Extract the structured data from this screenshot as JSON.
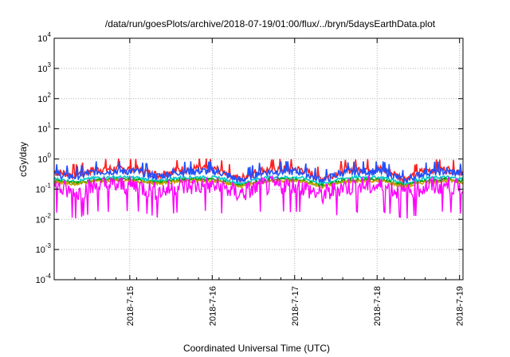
{
  "chart_data": {
    "type": "line",
    "title": "/data/run/goesPlots/archive/2018-07-19/01:00/flux/../bryn/5daysEarthData.plot",
    "xlabel": "Coordinated Universal Time (UTC)",
    "ylabel": "cGy/day",
    "xlim": [
      "2018-07-14T02:00",
      "2018-07-19T01:00"
    ],
    "ylim": [
      0.0001,
      10000
    ],
    "yscale": "log",
    "grid": true,
    "legend": "none",
    "x_ticks": [
      "2018-7-15",
      "2018-7-16",
      "2018-7-17",
      "2018-7-18",
      "2018-7-19"
    ],
    "y_ticks": [
      {
        "value": 0.0001,
        "base": "10",
        "exp": "-4"
      },
      {
        "value": 0.001,
        "base": "10",
        "exp": "-3"
      },
      {
        "value": 0.01,
        "base": "10",
        "exp": "-2"
      },
      {
        "value": 0.1,
        "base": "10",
        "exp": "-1"
      },
      {
        "value": 1,
        "base": "10",
        "exp": "0"
      },
      {
        "value": 10,
        "base": "10",
        "exp": "1"
      },
      {
        "value": 100,
        "base": "10",
        "exp": "2"
      },
      {
        "value": 1000,
        "base": "10",
        "exp": "3"
      },
      {
        "value": 10000,
        "base": "10",
        "exp": "4"
      }
    ],
    "x": [
      "2018-07-14T02:00",
      "2018-07-14T08:00",
      "2018-07-14T14:00",
      "2018-07-14T20:00",
      "2018-07-15T02:00",
      "2018-07-15T08:00",
      "2018-07-15T14:00",
      "2018-07-15T20:00",
      "2018-07-16T02:00",
      "2018-07-16T08:00",
      "2018-07-16T14:00",
      "2018-07-16T20:00",
      "2018-07-17T02:00",
      "2018-07-17T08:00",
      "2018-07-17T14:00",
      "2018-07-17T20:00",
      "2018-07-18T02:00",
      "2018-07-18T08:00",
      "2018-07-18T14:00",
      "2018-07-18T20:00",
      "2018-07-19T01:00"
    ],
    "series": [
      {
        "color": "#ff2020",
        "values": [
          0.38,
          0.3,
          0.45,
          0.48,
          0.46,
          0.3,
          0.44,
          0.48,
          0.45,
          0.22,
          0.42,
          0.47,
          0.45,
          0.22,
          0.42,
          0.47,
          0.45,
          0.22,
          0.42,
          0.46,
          0.38
        ]
      },
      {
        "color": "#2050ff",
        "values": [
          0.32,
          0.26,
          0.38,
          0.4,
          0.39,
          0.26,
          0.37,
          0.4,
          0.38,
          0.19,
          0.36,
          0.39,
          0.38,
          0.19,
          0.36,
          0.39,
          0.38,
          0.19,
          0.36,
          0.39,
          0.32
        ]
      },
      {
        "color": "#00c8c8",
        "values": [
          0.22,
          0.18,
          0.24,
          0.25,
          0.24,
          0.18,
          0.24,
          0.25,
          0.24,
          0.15,
          0.23,
          0.25,
          0.24,
          0.15,
          0.23,
          0.25,
          0.24,
          0.15,
          0.23,
          0.25,
          0.22
        ]
      },
      {
        "color": "#00a000",
        "values": [
          0.19,
          0.16,
          0.2,
          0.21,
          0.2,
          0.16,
          0.2,
          0.21,
          0.2,
          0.13,
          0.19,
          0.21,
          0.2,
          0.13,
          0.19,
          0.21,
          0.2,
          0.13,
          0.19,
          0.21,
          0.19
        ]
      },
      {
        "color": "#c8a000",
        "values": [
          0.17,
          0.15,
          0.18,
          0.19,
          0.18,
          0.15,
          0.18,
          0.19,
          0.18,
          0.12,
          0.17,
          0.19,
          0.18,
          0.12,
          0.17,
          0.19,
          0.18,
          0.12,
          0.17,
          0.19,
          0.17
        ]
      },
      {
        "color": "#ff00ff",
        "values": [
          0.12,
          0.07,
          0.13,
          0.13,
          0.13,
          0.08,
          0.12,
          0.13,
          0.12,
          0.07,
          0.12,
          0.13,
          0.12,
          0.06,
          0.12,
          0.13,
          0.12,
          0.07,
          0.12,
          0.13,
          0.1
        ]
      }
    ]
  }
}
